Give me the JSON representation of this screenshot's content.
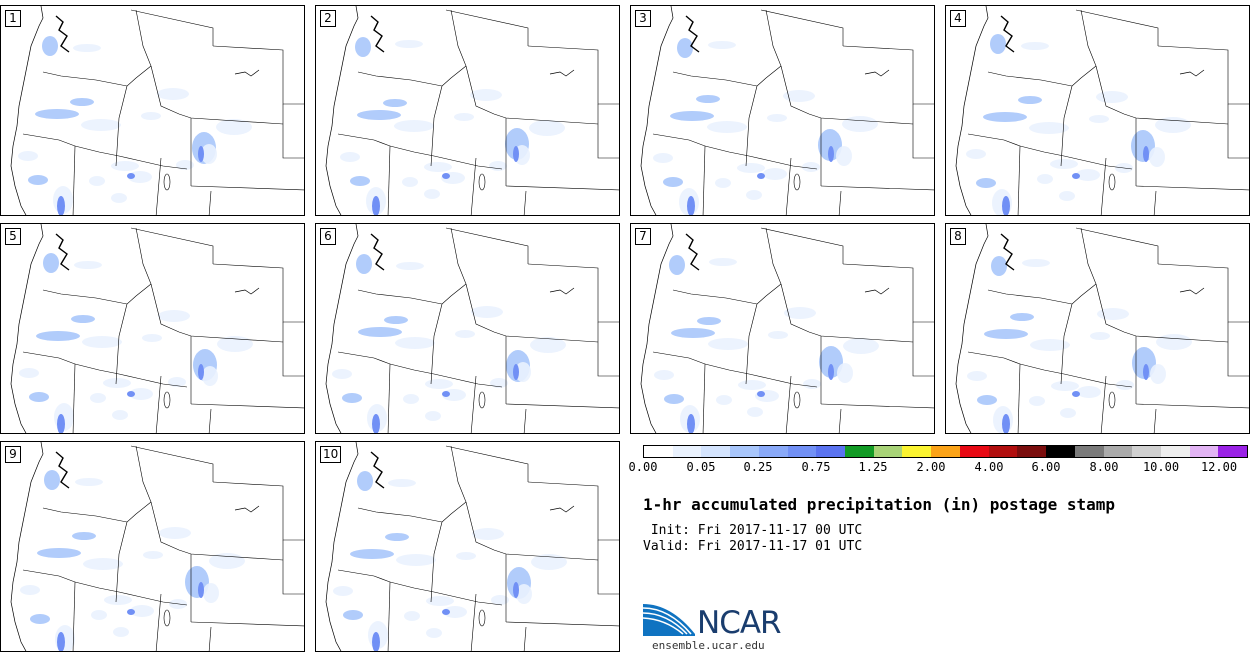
{
  "panels": [
    "1",
    "2",
    "3",
    "4",
    "5",
    "6",
    "7",
    "8",
    "9",
    "10"
  ],
  "colorbar": {
    "colors": [
      "#ffffff",
      "#eaf2fe",
      "#d4e4fe",
      "#a8c6fb",
      "#89a9f8",
      "#7190f5",
      "#5a73f0",
      "#129b25",
      "#a8d377",
      "#fbf431",
      "#fba318",
      "#e80914",
      "#b10e0e",
      "#7a0d0d",
      "#000000",
      "#7a7a7a",
      "#aaaaaa",
      "#d0d0d0",
      "#eeeeee",
      "#e2b4f4",
      "#9a22e6"
    ],
    "ticks": [
      "0.00",
      "0.05",
      "0.25",
      "0.75",
      "1.25",
      "2.00",
      "4.00",
      "6.00",
      "8.00",
      "10.00",
      "12.00"
    ]
  },
  "title": "1-hr accumulated precipitation (in) postage stamp",
  "init": " Init: Fri 2017-11-17 00 UTC",
  "valid": "Valid: Fri 2017-11-17 01 UTC",
  "logo": {
    "name": "NCAR",
    "url": "ensemble.ucar.edu"
  }
}
